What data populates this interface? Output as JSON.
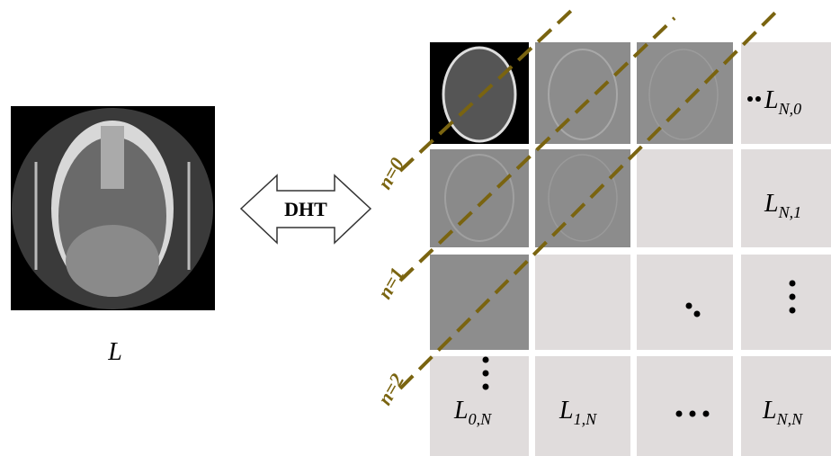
{
  "input_label": "L",
  "transform_label": "DHT",
  "diagonals": [
    "n=0",
    "n=1",
    "n=2"
  ],
  "cells": [
    {
      "base": "L",
      "sub": "N,0"
    },
    {
      "base": "L",
      "sub": "N,1"
    },
    {
      "base": "L",
      "sub": "0,N"
    },
    {
      "base": "L",
      "sub": "1,N"
    },
    {
      "base": "L",
      "sub": "N,N"
    }
  ]
}
